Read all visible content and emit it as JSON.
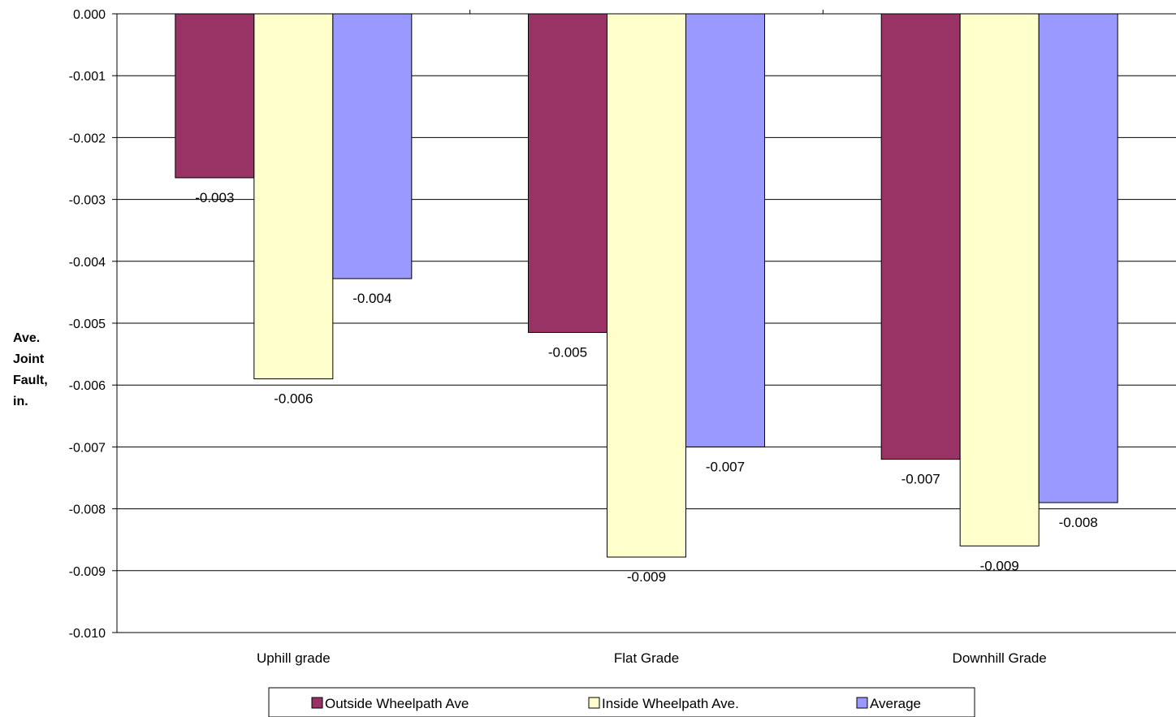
{
  "chart_data": {
    "type": "bar",
    "ylabel": [
      "Ave.",
      "Joint",
      "Fault,",
      "in."
    ],
    "categories": [
      "Uphill grade",
      "Flat Grade",
      "Downhill Grade"
    ],
    "ylim": [
      -0.01,
      0
    ],
    "ytick_step": 0.001,
    "ytick_labels": [
      "0.000",
      "-0.001",
      "-0.002",
      "-0.003",
      "-0.004",
      "-0.005",
      "-0.006",
      "-0.007",
      "-0.008",
      "-0.009",
      "-0.010"
    ],
    "grid": true,
    "legend_position": "bottom",
    "series": [
      {
        "name": "Outside Wheelpath Ave",
        "color": "#993366",
        "values": [
          -0.00265,
          -0.00515,
          -0.0072
        ],
        "labels": [
          "-0.003",
          "-0.005",
          "-0.007"
        ]
      },
      {
        "name": "Inside Wheelpath Ave.",
        "color": "#FFFFCC",
        "values": [
          -0.0059,
          -0.00878,
          -0.0086
        ],
        "labels": [
          "-0.006",
          "-0.009",
          "-0.009"
        ]
      },
      {
        "name": "Average",
        "color": "#9999FF",
        "values": [
          -0.00428,
          -0.007,
          -0.0079
        ],
        "labels": [
          "-0.004",
          "-0.007",
          "-0.008"
        ]
      }
    ]
  }
}
